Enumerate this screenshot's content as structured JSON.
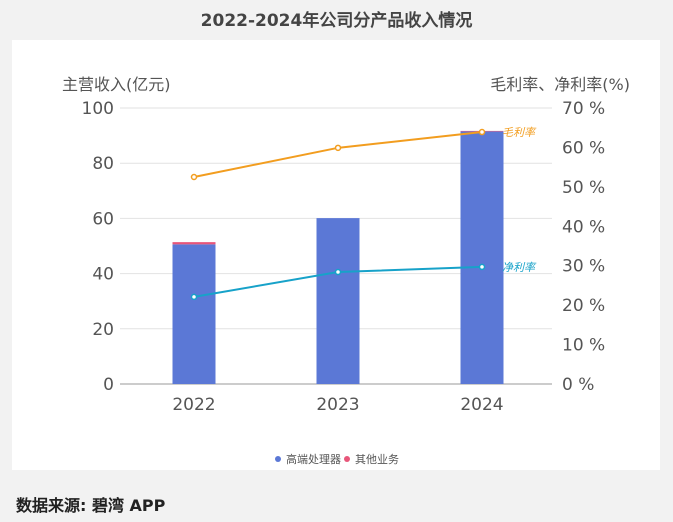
{
  "title": "2022-2024年公司分产品收入情况",
  "source": "数据来源: 碧湾 APP",
  "chart_data": {
    "type": "bar+line",
    "title": "2022-2024年公司分产品收入情况",
    "categories": [
      "2022",
      "2023",
      "2024"
    ],
    "ylabel_left": "主营收入(亿元)",
    "ylabel_right": "毛利率、净利率(%)",
    "ylim_left": [
      0,
      100
    ],
    "yticks_left": [
      "0",
      "20",
      "40",
      "60",
      "80",
      "100"
    ],
    "ylim_right": [
      0,
      70
    ],
    "yticks_right": [
      "0 %",
      "10 %",
      "20 %",
      "30 %",
      "40 %",
      "50 %",
      "60 %",
      "70 %"
    ],
    "grid": true,
    "legend_placement": "bottom",
    "bar_series": [
      {
        "name": "高端处理器",
        "color": "#5b78d6",
        "values": [
          50.6,
          60.1,
          91.5
        ]
      },
      {
        "name": "其他业务",
        "color": "#e8567a",
        "values": [
          0.8,
          0,
          0.2
        ]
      }
    ],
    "line_series": [
      {
        "name": "毛利率",
        "color": "#f29d1f",
        "values": [
          52.5,
          59.9,
          63.9
        ]
      },
      {
        "name": "净利率",
        "color": "#17a2c9",
        "values": [
          22.1,
          28.4,
          29.7
        ]
      }
    ]
  }
}
